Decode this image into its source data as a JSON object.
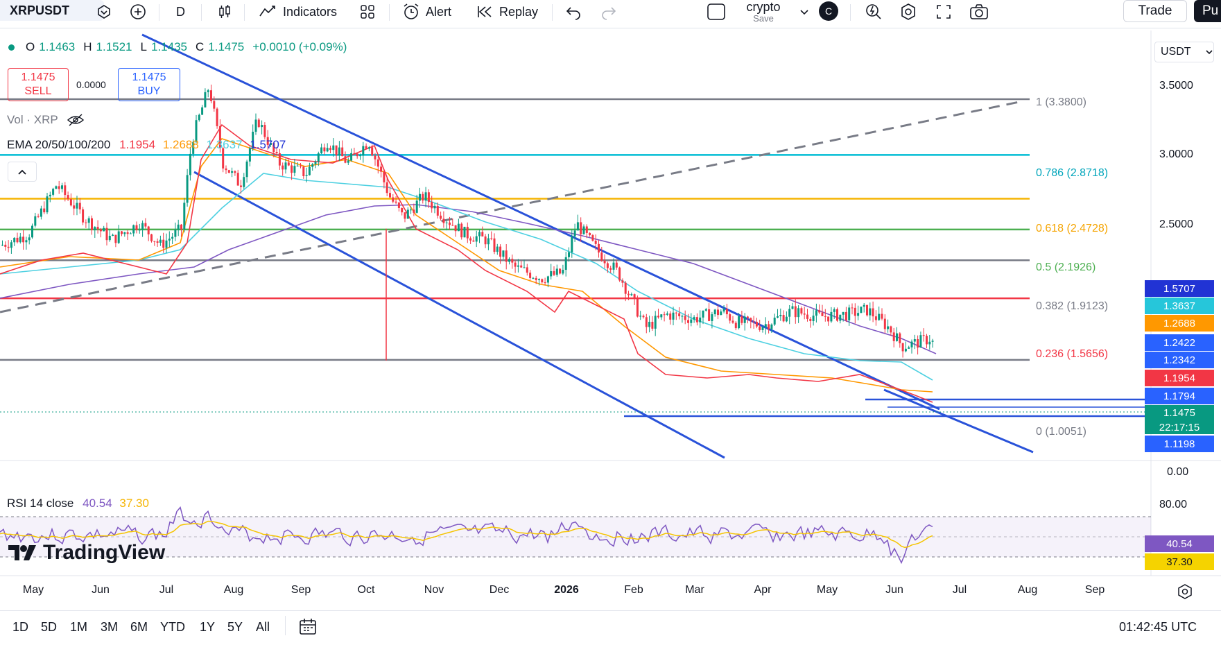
{
  "toolbar": {
    "symbol": "XRPUSDT",
    "interval": "D",
    "indicators_label": "Indicators",
    "alert_label": "Alert",
    "replay_label": "Replay",
    "layout_name": "crypto",
    "layout_status": "Save",
    "avatar_letter": "C",
    "trade_label": "Trade",
    "publish_label": "Pu"
  },
  "ohlc": {
    "o_label": "O",
    "o": "1.1463",
    "h_label": "H",
    "h": "1.1521",
    "l_label": "L",
    "l": "1.1435",
    "c_label": "C",
    "c": "1.1475",
    "change": "+0.0010 (+0.09%)"
  },
  "order": {
    "sell_price": "1.1475",
    "sell_label": "SELL",
    "spread": "0.0000",
    "buy_price": "1.1475",
    "buy_label": "BUY"
  },
  "legends": {
    "vol": "Vol · XRP",
    "ema_name": "EMA 20/50/100/200",
    "ema20": "1.1954",
    "ema50": "1.2688",
    "ema100": "1.3637",
    "ema200": "1.5707",
    "rsi_name": "RSI 14 close",
    "rsi_value": "40.54",
    "rsi_ma": "37.30"
  },
  "currency_selector": "USDT",
  "price_axis": [
    "3.5000",
    "3.0000",
    "2.5000",
    "0.00"
  ],
  "rsi_axis": [
    "80.00"
  ],
  "fib_levels": [
    {
      "label": "1 (3.3800)",
      "color": "#787b86"
    },
    {
      "label": "0.786 (2.8718)",
      "color": "#00bcd4"
    },
    {
      "label": "0.618 (2.4728)",
      "color": "#f5b400"
    },
    {
      "label": "0.5 (2.1926)",
      "color": "#4caf50"
    },
    {
      "label": "0.382 (1.9123)",
      "color": "#787b86"
    },
    {
      "label": "0.236 (1.5656)",
      "color": "#f23645"
    },
    {
      "label": "0 (1.0051)",
      "color": "#787b86"
    }
  ],
  "price_tags": [
    {
      "value": "1.5707",
      "color": "#2133d4"
    },
    {
      "value": "1.3637",
      "color": "#26c6da"
    },
    {
      "value": "1.2688",
      "color": "#ff9800"
    },
    {
      "value": "1.2422",
      "color": "#2962ff"
    },
    {
      "value": "1.2342",
      "color": "#2962ff"
    },
    {
      "value": "1.1954",
      "color": "#f23645"
    },
    {
      "value": "1.1794",
      "color": "#2962ff"
    },
    {
      "value": "1.1475",
      "color": "#089981"
    },
    {
      "value": "22:17:15",
      "color": "#089981"
    },
    {
      "value": "1.1198",
      "color": "#2962ff"
    }
  ],
  "rsi_tags": [
    {
      "value": "40.54",
      "color": "#7e57c2"
    },
    {
      "value": "37.30",
      "color": "#f5d300"
    }
  ],
  "time_axis": [
    "May",
    "Jun",
    "Jul",
    "Aug",
    "Sep",
    "Oct",
    "Nov",
    "Dec",
    "2026",
    "Feb",
    "Mar",
    "Apr",
    "May",
    "Jun",
    "Jul",
    "Aug",
    "Sep"
  ],
  "ranges": [
    "1D",
    "5D",
    "1M",
    "3M",
    "6M",
    "YTD",
    "1Y",
    "5Y",
    "All"
  ],
  "clock": "01:42:45 UTC",
  "watermark": "TradingView",
  "chart_data": {
    "type": "line",
    "title": "",
    "x": [
      "May",
      "Jun",
      "Jul",
      "Aug",
      "Sep",
      "Oct",
      "Nov",
      "Dec",
      "2026",
      "Feb",
      "Mar",
      "Apr",
      "May",
      "Jun"
    ],
    "series": [
      {
        "values": [
          2.15,
          2.18,
          2.3,
          3.25,
          2.9,
          2.95,
          2.35,
          2.05,
          1.95,
          1.55,
          1.6,
          1.5,
          1.55,
          1.15
        ]
      }
    ],
    "ylabel": "",
    "ylim": [
      0,
      3.6
    ],
    "grid": false,
    "legend": "top-left"
  }
}
